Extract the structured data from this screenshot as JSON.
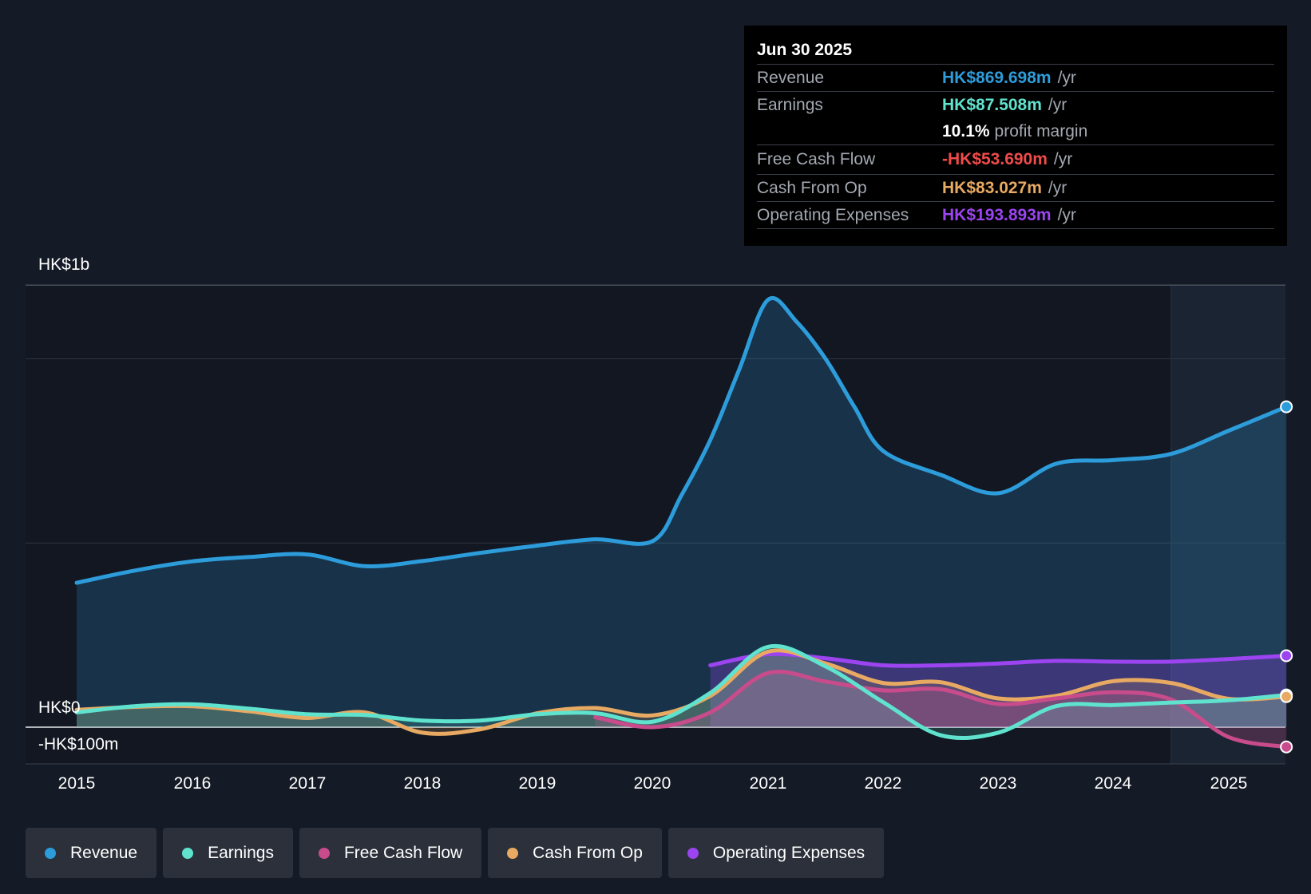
{
  "colors": {
    "revenue": "#2d9cdb",
    "earnings": "#5fe3cf",
    "fcf": "#c84c8c",
    "cfo": "#e8aa62",
    "opex": "#9b44f0",
    "background": "#151b26"
  },
  "tooltip": {
    "date": "Jun 30 2025",
    "revenue_label": "Revenue",
    "revenue_value": "HK$869.698m",
    "earnings_label": "Earnings",
    "earnings_value": "HK$87.508m",
    "margin_value": "10.1%",
    "margin_label": "profit margin",
    "fcf_label": "Free Cash Flow",
    "fcf_value": "-HK$53.690m",
    "cfo_label": "Cash From Op",
    "cfo_value": "HK$83.027m",
    "opex_label": "Operating Expenses",
    "opex_value": "HK$193.893m",
    "unit": "/yr"
  },
  "chart_data": {
    "type": "area",
    "x_unit": "year",
    "xlim": [
      2014.55,
      2025.5
    ],
    "ylim": [
      -100,
      1200
    ],
    "y_labels": {
      "top": "HK$1b",
      "zero": "HK$0",
      "bottom": "-HK$100m"
    },
    "x_ticks": [
      "2015",
      "2016",
      "2017",
      "2018",
      "2019",
      "2020",
      "2021",
      "2022",
      "2023",
      "2024",
      "2025"
    ],
    "forecast_start": 2024.5,
    "series": [
      {
        "name": "Revenue",
        "key": "revenue",
        "x": [
          2015,
          2015.5,
          2016,
          2016.5,
          2017,
          2017.5,
          2018,
          2018.5,
          2019,
          2019.5,
          2020,
          2020.25,
          2020.5,
          2020.75,
          2021,
          2021.25,
          2021.5,
          2021.75,
          2022,
          2022.5,
          2023,
          2023.5,
          2024,
          2024.5,
          2025,
          2025.5
        ],
        "values": [
          392,
          425,
          450,
          462,
          469,
          437,
          451,
          473,
          493,
          510,
          505,
          630,
          780,
          970,
          1160,
          1100,
          1000,
          870,
          750,
          685,
          635,
          715,
          725,
          742,
          805,
          869.698
        ]
      },
      {
        "name": "Earnings",
        "key": "earnings",
        "x": [
          2015,
          2015.5,
          2016,
          2016.5,
          2017,
          2017.5,
          2018,
          2018.5,
          2019,
          2019.5,
          2020,
          2020.5,
          2021,
          2021.5,
          2022,
          2022.5,
          2023,
          2023.5,
          2024,
          2024.5,
          2025,
          2025.5
        ],
        "values": [
          40,
          57,
          62,
          50,
          35,
          33,
          18,
          18,
          35,
          38,
          15,
          93,
          218,
          165,
          68,
          -22,
          -15,
          57,
          60,
          67,
          73,
          87.508
        ]
      },
      {
        "name": "Free Cash Flow",
        "key": "fcf",
        "x": [
          2019.5,
          2020,
          2020.5,
          2021,
          2021.5,
          2022,
          2022.5,
          2023,
          2023.5,
          2024,
          2024.5,
          2025,
          2025.5
        ],
        "values": [
          27,
          0,
          40,
          147,
          124,
          100,
          103,
          63,
          78,
          95,
          75,
          -27,
          -53.69
        ]
      },
      {
        "name": "Cash From Op",
        "key": "cfo",
        "x": [
          2015,
          2015.5,
          2016,
          2016.5,
          2017,
          2017.5,
          2018,
          2018.5,
          2019,
          2019.5,
          2020,
          2020.5,
          2021,
          2021.5,
          2022,
          2022.5,
          2023,
          2023.5,
          2024,
          2024.5,
          2025,
          2025.5
        ],
        "values": [
          47,
          55,
          57,
          43,
          25,
          40,
          -15,
          -6,
          38,
          52,
          32,
          85,
          205,
          173,
          120,
          122,
          78,
          85,
          125,
          120,
          77,
          83.027
        ]
      },
      {
        "name": "Operating Expenses",
        "key": "opex",
        "x": [
          2020.5,
          2021,
          2021.5,
          2022,
          2022.5,
          2023,
          2023.5,
          2024,
          2024.5,
          2025,
          2025.5
        ],
        "values": [
          168,
          198,
          187,
          168,
          168,
          173,
          180,
          178,
          178,
          185,
          193.893
        ]
      }
    ]
  },
  "legend": {
    "items": [
      {
        "label": "Revenue",
        "key": "revenue"
      },
      {
        "label": "Earnings",
        "key": "earnings"
      },
      {
        "label": "Free Cash Flow",
        "key": "fcf"
      },
      {
        "label": "Cash From Op",
        "key": "cfo"
      },
      {
        "label": "Operating Expenses",
        "key": "opex"
      }
    ]
  }
}
